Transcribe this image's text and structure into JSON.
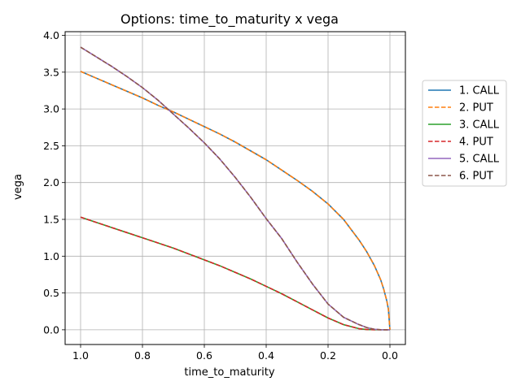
{
  "chart_data": {
    "type": "line",
    "title": "Options: time_to_maturity x vega",
    "xlabel": "time_to_maturity",
    "ylabel": "vega",
    "xlim": [
      1.05,
      -0.05
    ],
    "ylim": [
      -0.2,
      4.05
    ],
    "x_reversed": true,
    "grid": true,
    "legend_position": "right-outside",
    "xticks": [
      1.0,
      0.8,
      0.6,
      0.4,
      0.2,
      0.0
    ],
    "xtick_labels": [
      "1.0",
      "0.8",
      "0.6",
      "0.4",
      "0.2",
      "0.0"
    ],
    "yticks": [
      0.0,
      0.5,
      1.0,
      1.5,
      2.0,
      2.5,
      3.0,
      3.5,
      4.0
    ],
    "ytick_labels": [
      "0.0",
      "0.5",
      "1.0",
      "1.5",
      "2.0",
      "2.5",
      "3.0",
      "3.5",
      "4.0"
    ],
    "x": [
      1.0,
      0.95,
      0.9,
      0.85,
      0.8,
      0.75,
      0.7,
      0.65,
      0.6,
      0.55,
      0.5,
      0.45,
      0.4,
      0.35,
      0.3,
      0.25,
      0.2,
      0.15,
      0.1,
      0.075,
      0.05,
      0.03,
      0.02,
      0.01,
      0.005,
      0.0
    ],
    "series": [
      {
        "name": "1. CALL",
        "color": "#1f77b4",
        "dash": "solid",
        "values": [
          3.51,
          3.42,
          3.33,
          3.24,
          3.15,
          3.05,
          2.96,
          2.86,
          2.76,
          2.66,
          2.55,
          2.43,
          2.31,
          2.17,
          2.03,
          1.88,
          1.71,
          1.5,
          1.22,
          1.06,
          0.87,
          0.68,
          0.55,
          0.39,
          0.28,
          0.0
        ]
      },
      {
        "name": "2. PUT",
        "color": "#ff7f0e",
        "dash": "dashed",
        "values": [
          3.51,
          3.42,
          3.33,
          3.24,
          3.15,
          3.05,
          2.96,
          2.86,
          2.76,
          2.66,
          2.55,
          2.43,
          2.31,
          2.17,
          2.03,
          1.88,
          1.71,
          1.5,
          1.22,
          1.06,
          0.87,
          0.68,
          0.55,
          0.39,
          0.28,
          0.0
        ]
      },
      {
        "name": "3. CALL",
        "color": "#2ca02c",
        "dash": "solid",
        "values": [
          1.53,
          1.46,
          1.39,
          1.32,
          1.25,
          1.18,
          1.11,
          1.03,
          0.95,
          0.87,
          0.78,
          0.69,
          0.59,
          0.49,
          0.38,
          0.27,
          0.16,
          0.07,
          0.015,
          0.004,
          0.0,
          0.0,
          0.0,
          0.0,
          0.0,
          0.0
        ]
      },
      {
        "name": "4. PUT",
        "color": "#d62728",
        "dash": "dashed",
        "values": [
          1.53,
          1.46,
          1.39,
          1.32,
          1.25,
          1.18,
          1.11,
          1.03,
          0.95,
          0.87,
          0.78,
          0.69,
          0.59,
          0.49,
          0.38,
          0.27,
          0.16,
          0.07,
          0.015,
          0.004,
          0.0,
          0.0,
          0.0,
          0.0,
          0.0,
          0.0
        ]
      },
      {
        "name": "5. CALL",
        "color": "#9467bd",
        "dash": "solid",
        "values": [
          3.84,
          3.71,
          3.58,
          3.44,
          3.29,
          3.12,
          2.93,
          2.74,
          2.54,
          2.32,
          2.07,
          1.8,
          1.51,
          1.24,
          0.92,
          0.62,
          0.35,
          0.17,
          0.07,
          0.03,
          0.007,
          0.001,
          0.0,
          0.0,
          0.0,
          0.0
        ]
      },
      {
        "name": "6. PUT",
        "color": "#8c564b",
        "dash": "dashed",
        "values": [
          3.84,
          3.71,
          3.58,
          3.44,
          3.29,
          3.12,
          2.93,
          2.74,
          2.54,
          2.32,
          2.07,
          1.8,
          1.51,
          1.24,
          0.92,
          0.62,
          0.35,
          0.17,
          0.07,
          0.03,
          0.007,
          0.001,
          0.0,
          0.0,
          0.0,
          0.0
        ]
      }
    ]
  }
}
